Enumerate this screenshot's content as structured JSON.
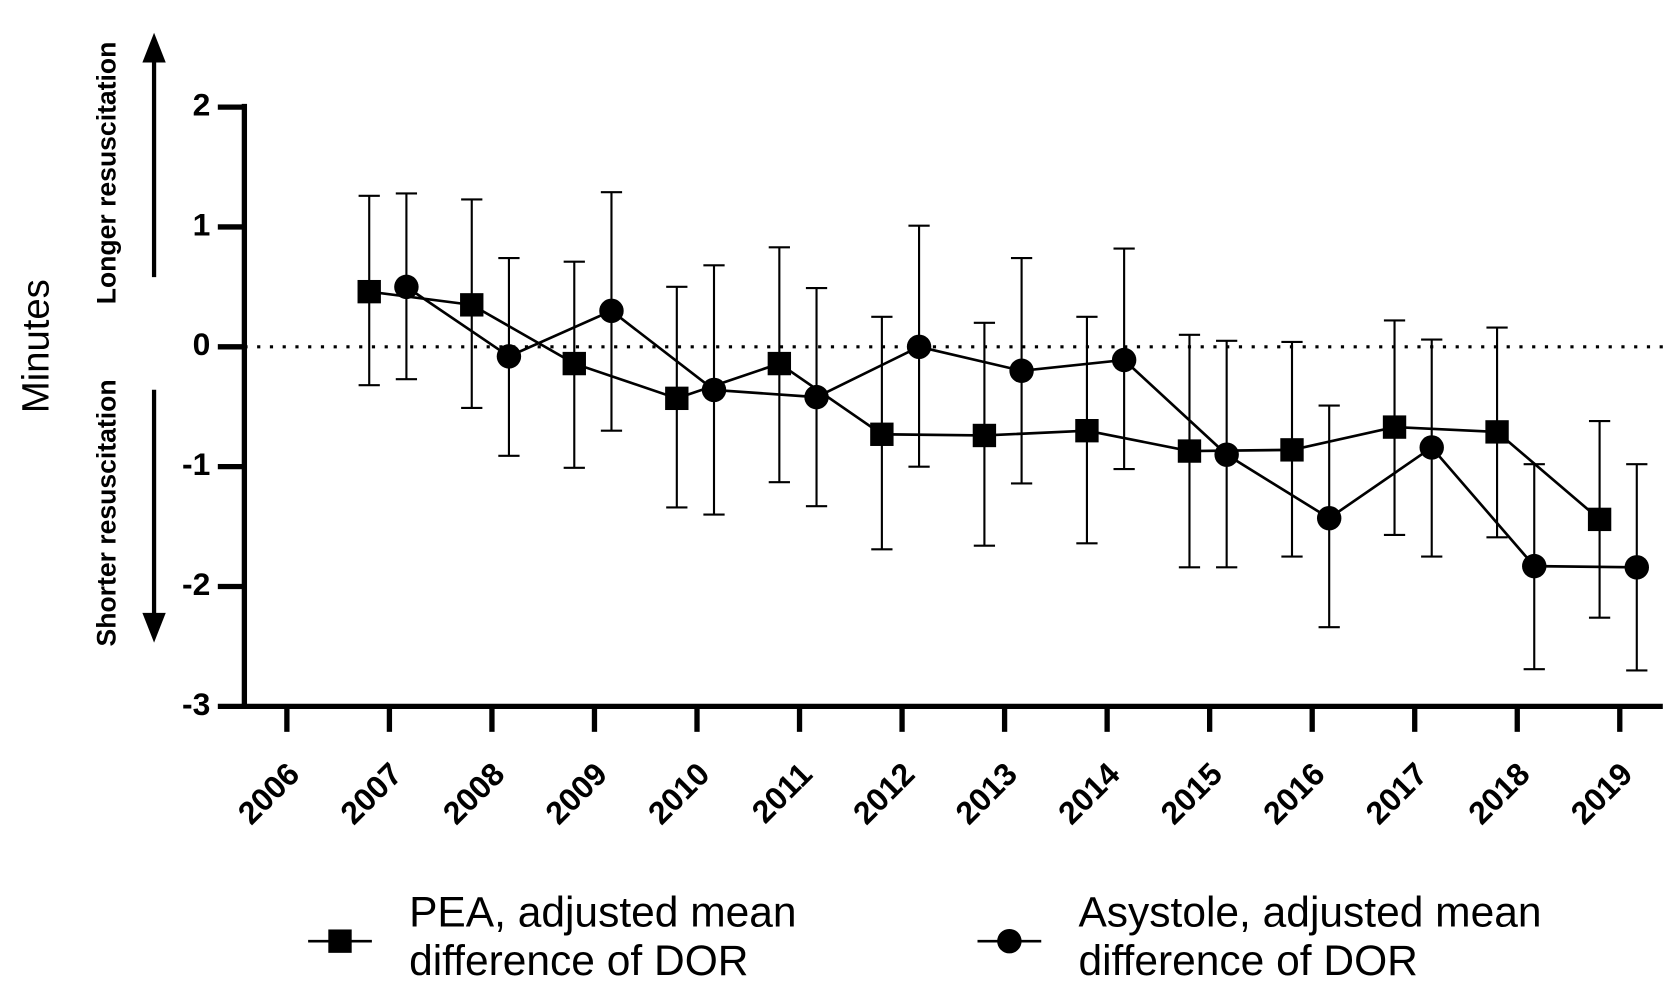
{
  "chart_data": {
    "type": "line",
    "y_label": "Minutes",
    "annotations": [
      "Longer resuscitation",
      "Shorter resuscitation"
    ],
    "categories": [
      "2006",
      "2007",
      "2008",
      "2009",
      "2010",
      "2011",
      "2012",
      "2013",
      "2014",
      "2015",
      "2016",
      "2017",
      "2018",
      "2019"
    ],
    "ylim": [
      -3,
      2
    ],
    "yticks": [
      -3,
      -2,
      -1,
      0,
      1,
      2
    ],
    "zero_line": true,
    "series": [
      {
        "name": "PEA, adjusted mean difference of DOR",
        "marker": "square",
        "color": "#000000",
        "values": [
          null,
          0.46,
          0.35,
          -0.14,
          -0.43,
          -0.14,
          -0.73,
          -0.74,
          -0.7,
          -0.87,
          -0.86,
          -0.67,
          -0.71,
          -1.44
        ],
        "high": [
          null,
          1.26,
          1.23,
          0.71,
          0.5,
          0.83,
          0.25,
          0.2,
          0.25,
          0.1,
          0.04,
          0.22,
          0.16,
          -0.62
        ],
        "low": [
          null,
          -0.32,
          -0.51,
          -1.01,
          -1.34,
          -1.13,
          -1.69,
          -1.66,
          -1.64,
          -1.84,
          -1.75,
          -1.57,
          -1.59,
          -2.26
        ]
      },
      {
        "name": "Asystole, adjusted mean difference of DOR",
        "marker": "circle",
        "color": "#000000",
        "values": [
          null,
          0.5,
          -0.08,
          0.3,
          -0.36,
          -0.42,
          0.0,
          -0.2,
          -0.11,
          -0.9,
          -1.43,
          -0.84,
          -1.83,
          -1.84
        ],
        "high": [
          null,
          1.28,
          0.74,
          1.29,
          0.68,
          0.49,
          1.01,
          0.74,
          0.82,
          0.05,
          -0.49,
          0.06,
          -0.98,
          -0.98
        ],
        "low": [
          null,
          -0.27,
          -0.91,
          -0.7,
          -1.4,
          -1.33,
          -1.0,
          -1.14,
          -1.02,
          -1.84,
          -2.34,
          -1.75,
          -2.69,
          -2.7
        ]
      }
    ]
  }
}
